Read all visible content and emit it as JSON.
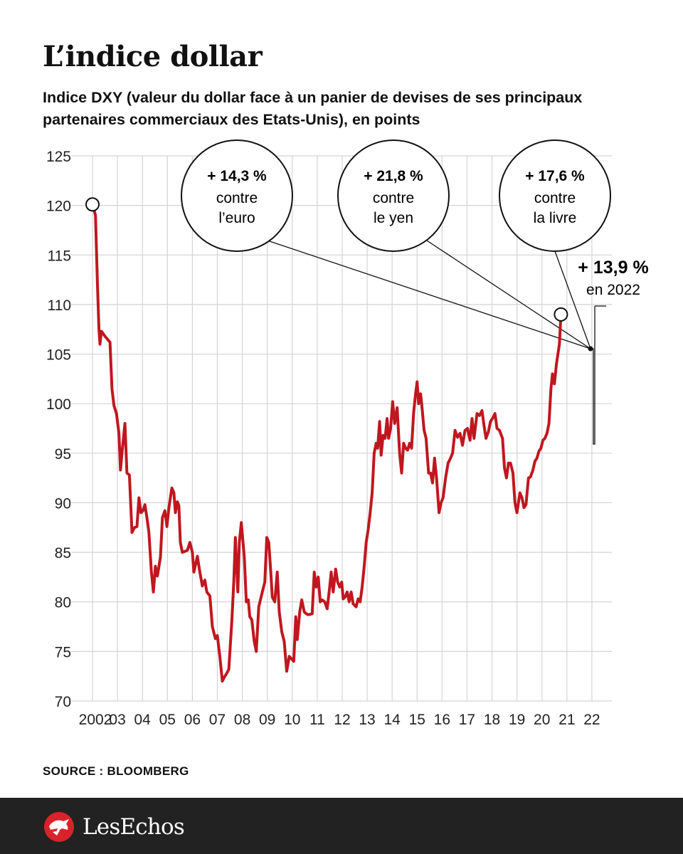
{
  "title": "L’indice dollar",
  "subtitle": "Indice DXY (valeur du dollar face à un panier de devises de ses principaux partenaires commerciaux des Etats-Unis), en points",
  "source": "SOURCE : BLOOMBERG",
  "brand": "LesEchos",
  "colors": {
    "line": "#c0171f",
    "grid": "#d4d4d4",
    "footer": "#222222",
    "logo": "#d8232a"
  },
  "annotations": [
    {
      "value": "+ 14,3 %",
      "line1": "contre",
      "line2": "l’euro"
    },
    {
      "value": "+ 21,8 %",
      "line1": "contre",
      "line2": "le yen"
    },
    {
      "value": "+ 17,6 %",
      "line1": "contre",
      "line2": "la livre"
    }
  ],
  "highlight": {
    "value": "+ 13,9 %",
    "label": "en 2022"
  },
  "chart_data": {
    "type": "line",
    "title": "L’indice dollar",
    "ylabel": "",
    "xlabel": "",
    "ylim": [
      70,
      125
    ],
    "yticks": [
      70,
      75,
      80,
      85,
      90,
      95,
      100,
      105,
      110,
      115,
      120,
      125
    ],
    "xlim": [
      2002,
      2022.8
    ],
    "xticks": [
      {
        "x": 2002,
        "label": "2002"
      },
      {
        "x": 2003,
        "label": "03"
      },
      {
        "x": 2004,
        "label": "04"
      },
      {
        "x": 2005,
        "label": "05"
      },
      {
        "x": 2006,
        "label": "06"
      },
      {
        "x": 2007,
        "label": "07"
      },
      {
        "x": 2008,
        "label": "08"
      },
      {
        "x": 2009,
        "label": "09"
      },
      {
        "x": 2010,
        "label": "10"
      },
      {
        "x": 2011,
        "label": "11"
      },
      {
        "x": 2012,
        "label": "12"
      },
      {
        "x": 2013,
        "label": "13"
      },
      {
        "x": 2014,
        "label": "14"
      },
      {
        "x": 2015,
        "label": "15"
      },
      {
        "x": 2016,
        "label": "16"
      },
      {
        "x": 2017,
        "label": "17"
      },
      {
        "x": 2018,
        "label": "18"
      },
      {
        "x": 2019,
        "label": "19"
      },
      {
        "x": 2020,
        "label": "20"
      },
      {
        "x": 2021,
        "label": "21"
      },
      {
        "x": 2022,
        "label": "22"
      }
    ],
    "grid": true,
    "series": [
      {
        "name": "",
        "points": [
          [
            2002.0,
            120.1
          ],
          [
            2002.12,
            119.0
          ],
          [
            2002.2,
            112.0
          ],
          [
            2002.26,
            107.5
          ],
          [
            2002.3,
            106.0
          ],
          [
            2002.36,
            107.3
          ],
          [
            2002.5,
            106.8
          ],
          [
            2002.7,
            106.2
          ],
          [
            2002.78,
            101.5
          ],
          [
            2002.86,
            99.8
          ],
          [
            2002.96,
            99.0
          ],
          [
            2003.06,
            97.0
          ],
          [
            2003.12,
            93.3
          ],
          [
            2003.2,
            95.5
          ],
          [
            2003.3,
            98.0
          ],
          [
            2003.38,
            93.0
          ],
          [
            2003.48,
            92.8
          ],
          [
            2003.58,
            87.0
          ],
          [
            2003.68,
            87.5
          ],
          [
            2003.78,
            87.6
          ],
          [
            2003.86,
            90.5
          ],
          [
            2003.94,
            89.0
          ],
          [
            2004.02,
            89.2
          ],
          [
            2004.1,
            89.8
          ],
          [
            2004.18,
            88.5
          ],
          [
            2004.26,
            87.0
          ],
          [
            2004.36,
            83.0
          ],
          [
            2004.44,
            81.0
          ],
          [
            2004.52,
            83.6
          ],
          [
            2004.6,
            82.6
          ],
          [
            2004.72,
            84.5
          ],
          [
            2004.8,
            88.5
          ],
          [
            2004.9,
            89.2
          ],
          [
            2004.98,
            87.6
          ],
          [
            2005.06,
            89.5
          ],
          [
            2005.18,
            91.5
          ],
          [
            2005.26,
            91.0
          ],
          [
            2005.32,
            89.0
          ],
          [
            2005.4,
            90.1
          ],
          [
            2005.46,
            89.7
          ],
          [
            2005.52,
            86.0
          ],
          [
            2005.6,
            85.0
          ],
          [
            2005.8,
            85.2
          ],
          [
            2005.9,
            86.0
          ],
          [
            2006.0,
            85.0
          ],
          [
            2006.06,
            83.0
          ],
          [
            2006.2,
            84.6
          ],
          [
            2006.3,
            83.0
          ],
          [
            2006.4,
            81.6
          ],
          [
            2006.5,
            82.2
          ],
          [
            2006.58,
            81.0
          ],
          [
            2006.7,
            80.6
          ],
          [
            2006.8,
            77.5
          ],
          [
            2006.92,
            76.3
          ],
          [
            2007.0,
            76.6
          ],
          [
            2007.1,
            74.5
          ],
          [
            2007.2,
            72.0
          ],
          [
            2007.28,
            72.4
          ],
          [
            2007.38,
            72.8
          ],
          [
            2007.46,
            73.2
          ],
          [
            2007.58,
            78.0
          ],
          [
            2007.66,
            82.0
          ],
          [
            2007.72,
            86.5
          ],
          [
            2007.82,
            81.0
          ],
          [
            2007.88,
            86.0
          ],
          [
            2007.96,
            88.0
          ],
          [
            2008.08,
            84.5
          ],
          [
            2008.16,
            80.0
          ],
          [
            2008.24,
            80.2
          ],
          [
            2008.3,
            78.5
          ],
          [
            2008.38,
            78.2
          ],
          [
            2008.48,
            76.0
          ],
          [
            2008.56,
            75.0
          ],
          [
            2008.66,
            79.5
          ],
          [
            2008.8,
            81.0
          ],
          [
            2008.9,
            82.0
          ],
          [
            2008.98,
            86.5
          ],
          [
            2009.06,
            86.0
          ],
          [
            2009.14,
            83.0
          ],
          [
            2009.2,
            80.5
          ],
          [
            2009.3,
            80.0
          ],
          [
            2009.4,
            83.0
          ],
          [
            2009.48,
            79.0
          ],
          [
            2009.58,
            77.0
          ],
          [
            2009.68,
            76.0
          ],
          [
            2009.78,
            73.0
          ],
          [
            2009.88,
            74.5
          ],
          [
            2010.06,
            74.0
          ],
          [
            2010.14,
            78.5
          ],
          [
            2010.2,
            76.2
          ],
          [
            2010.3,
            79.0
          ],
          [
            2010.38,
            80.2
          ],
          [
            2010.48,
            79.0
          ],
          [
            2010.56,
            78.8
          ],
          [
            2010.64,
            78.7
          ],
          [
            2010.8,
            78.8
          ],
          [
            2010.88,
            83.0
          ],
          [
            2010.96,
            81.5
          ],
          [
            2011.04,
            82.5
          ],
          [
            2011.12,
            80.0
          ],
          [
            2011.2,
            80.2
          ],
          [
            2011.3,
            80.0
          ],
          [
            2011.4,
            79.3
          ],
          [
            2011.5,
            81.5
          ],
          [
            2011.56,
            83.0
          ],
          [
            2011.64,
            81.0
          ],
          [
            2011.74,
            83.3
          ],
          [
            2011.82,
            82.0
          ],
          [
            2011.9,
            81.5
          ],
          [
            2011.98,
            82.0
          ],
          [
            2012.04,
            80.3
          ],
          [
            2012.12,
            80.5
          ],
          [
            2012.2,
            81.0
          ],
          [
            2012.28,
            80.0
          ],
          [
            2012.36,
            81.0
          ],
          [
            2012.44,
            79.8
          ],
          [
            2012.56,
            79.5
          ],
          [
            2012.64,
            80.3
          ],
          [
            2012.72,
            80.0
          ],
          [
            2012.8,
            81.5
          ],
          [
            2012.88,
            83.5
          ],
          [
            2012.96,
            86.0
          ],
          [
            2013.04,
            87.3
          ],
          [
            2013.12,
            89.0
          ],
          [
            2013.2,
            91.0
          ],
          [
            2013.28,
            95.0
          ],
          [
            2013.36,
            96.0
          ],
          [
            2013.42,
            95.5
          ],
          [
            2013.5,
            98.2
          ],
          [
            2013.56,
            94.8
          ],
          [
            2013.64,
            96.8
          ],
          [
            2013.72,
            96.5
          ],
          [
            2013.8,
            98.5
          ],
          [
            2013.86,
            96.5
          ],
          [
            2013.94,
            97.5
          ],
          [
            2014.02,
            100.2
          ],
          [
            2014.1,
            98.0
          ],
          [
            2014.2,
            99.6
          ],
          [
            2014.3,
            95.0
          ],
          [
            2014.38,
            93.0
          ],
          [
            2014.46,
            96.0
          ],
          [
            2014.54,
            95.5
          ],
          [
            2014.62,
            95.3
          ],
          [
            2014.7,
            96.0
          ],
          [
            2014.78,
            95.5
          ],
          [
            2014.86,
            99.0
          ],
          [
            2014.94,
            101.0
          ],
          [
            2015.0,
            102.2
          ],
          [
            2015.06,
            100.0
          ],
          [
            2015.14,
            101.0
          ],
          [
            2015.2,
            99.5
          ],
          [
            2015.28,
            97.3
          ],
          [
            2015.36,
            96.5
          ],
          [
            2015.46,
            93.0
          ],
          [
            2015.54,
            93.0
          ],
          [
            2015.62,
            92.0
          ],
          [
            2015.7,
            94.5
          ],
          [
            2015.78,
            92.5
          ],
          [
            2015.88,
            89.0
          ],
          [
            2015.96,
            90.0
          ],
          [
            2016.04,
            90.5
          ],
          [
            2016.14,
            92.5
          ],
          [
            2016.24,
            94.0
          ],
          [
            2016.34,
            94.5
          ],
          [
            2016.42,
            95.0
          ],
          [
            2016.52,
            97.3
          ],
          [
            2016.62,
            96.6
          ],
          [
            2016.72,
            97.0
          ],
          [
            2016.82,
            95.8
          ],
          [
            2016.92,
            97.3
          ],
          [
            2017.02,
            97.5
          ],
          [
            2017.12,
            96.3
          ],
          [
            2017.2,
            98.5
          ],
          [
            2017.28,
            96.5
          ],
          [
            2017.4,
            99.0
          ],
          [
            2017.5,
            98.8
          ],
          [
            2017.6,
            99.3
          ],
          [
            2017.68,
            97.8
          ],
          [
            2017.76,
            96.5
          ],
          [
            2017.86,
            97.2
          ],
          [
            2017.94,
            98.2
          ],
          [
            2018.02,
            98.5
          ],
          [
            2018.12,
            99.0
          ],
          [
            2018.2,
            97.5
          ],
          [
            2018.3,
            97.3
          ],
          [
            2018.42,
            96.5
          ],
          [
            2018.5,
            93.5
          ],
          [
            2018.58,
            92.5
          ],
          [
            2018.66,
            94.0
          ],
          [
            2018.74,
            94.0
          ],
          [
            2018.84,
            93.0
          ],
          [
            2018.92,
            90.0
          ],
          [
            2019.0,
            89.0
          ],
          [
            2019.12,
            91.0
          ],
          [
            2019.2,
            90.5
          ],
          [
            2019.28,
            89.5
          ],
          [
            2019.36,
            89.8
          ],
          [
            2019.46,
            92.5
          ],
          [
            2019.54,
            92.6
          ],
          [
            2019.64,
            93.3
          ],
          [
            2019.72,
            94.2
          ],
          [
            2019.8,
            94.5
          ],
          [
            2019.88,
            95.2
          ],
          [
            2019.96,
            95.5
          ],
          [
            2020.04,
            96.3
          ],
          [
            2020.12,
            96.5
          ],
          [
            2020.2,
            97.0
          ],
          [
            2020.28,
            98.0
          ],
          [
            2020.36,
            101.5
          ],
          [
            2020.42,
            103.0
          ],
          [
            2020.5,
            102.0
          ],
          [
            2020.58,
            104.0
          ],
          [
            2020.64,
            105.0
          ],
          [
            2020.7,
            106.0
          ],
          [
            2020.76,
            109.0
          ]
        ]
      }
    ],
    "point_markers": [
      {
        "x": 2002.0,
        "y": 120.1
      },
      {
        "x": 2020.76,
        "y": 109.0
      }
    ]
  }
}
